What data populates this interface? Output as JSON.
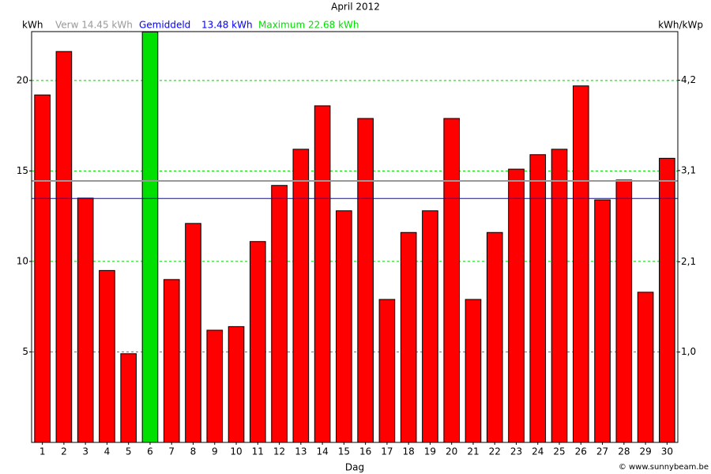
{
  "chart_data": {
    "type": "bar",
    "title": "April 2012",
    "y_label": "kWh",
    "y2_label": "kWh/kWp",
    "x_label": "Dag",
    "expected": {
      "label": "Verw 14.45 kWh",
      "value": 14.45,
      "color": "#999999"
    },
    "average": {
      "label": "Gemiddeld",
      "value_label": "13.48 kWh",
      "value": 13.48,
      "color": "#0000ff"
    },
    "maximum": {
      "label": "Maximum 22.68 kWh",
      "value": 22.68,
      "color": "#00e000"
    },
    "credit": "© www.sunnybeam.be",
    "categories": [
      "1",
      "2",
      "3",
      "4",
      "5",
      "6",
      "7",
      "8",
      "9",
      "10",
      "11",
      "12",
      "13",
      "14",
      "15",
      "16",
      "17",
      "18",
      "19",
      "20",
      "21",
      "22",
      "23",
      "24",
      "25",
      "26",
      "27",
      "28",
      "29",
      "30"
    ],
    "values": [
      19.2,
      21.6,
      13.5,
      9.5,
      4.9,
      22.68,
      9.0,
      12.1,
      6.2,
      6.4,
      11.1,
      14.2,
      16.2,
      18.6,
      12.8,
      17.9,
      7.9,
      11.6,
      12.8,
      17.9,
      7.9,
      11.6,
      15.1,
      15.9,
      16.2,
      19.7,
      13.4,
      14.5,
      8.3,
      15.7
    ],
    "color": "#ff0000",
    "ylim": [
      0,
      22.7
    ],
    "yticks": [
      5,
      10,
      15,
      20
    ],
    "y2lim": [
      0,
      4.73
    ],
    "y2ticks": [
      {
        "value": 1.04,
        "label": "1,0"
      },
      {
        "value": 2.08,
        "label": "2,1"
      },
      {
        "value": 3.13,
        "label": "3,1"
      },
      {
        "value": 4.17,
        "label": "4,2"
      }
    ],
    "grid": true,
    "grid_color": "#00cc00"
  }
}
